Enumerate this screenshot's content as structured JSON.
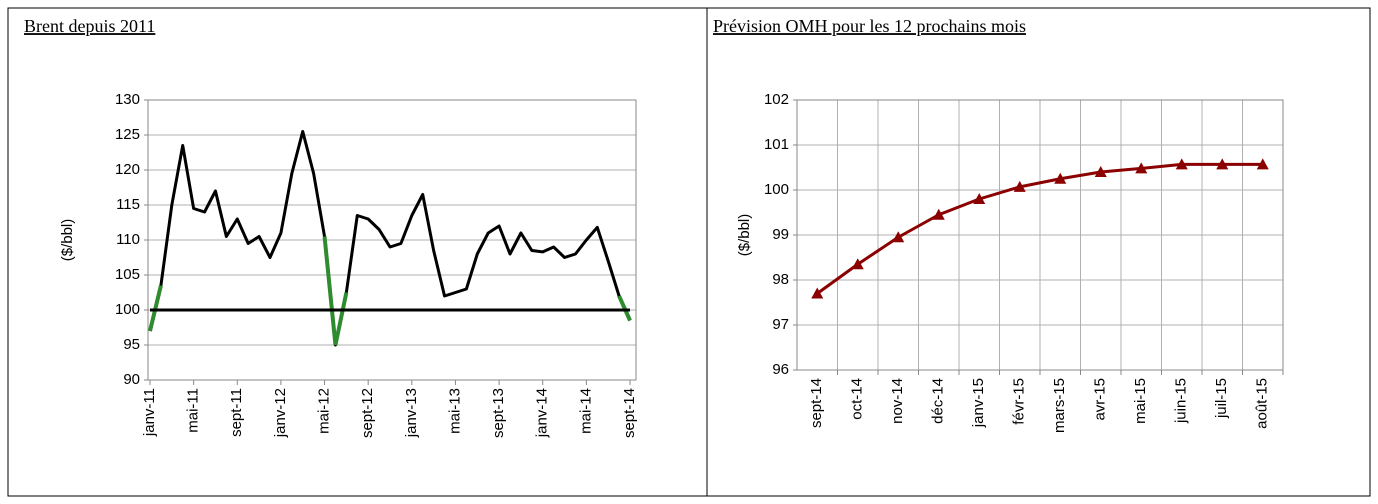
{
  "chart_data": [
    {
      "type": "line",
      "title": "Brent depuis 2011",
      "y_label": "($/bbl)",
      "categories": [
        "janv-11",
        null,
        null,
        null,
        "mai-11",
        null,
        null,
        null,
        "sept-11",
        null,
        null,
        null,
        "janv-12",
        null,
        null,
        null,
        "mai-12",
        null,
        null,
        null,
        "sept-12",
        null,
        null,
        null,
        "janv-13",
        null,
        null,
        null,
        "mai-13",
        null,
        null,
        null,
        "sept-13",
        null,
        null,
        null,
        "janv-14",
        null,
        null,
        null,
        "mai-14",
        null,
        null,
        null,
        "sept-14"
      ],
      "series": [
        {
          "color": "#000000",
          "below_color": "#2e8b2e",
          "values": [
            97,
            103.5,
            115,
            123.5,
            114.5,
            114,
            117,
            110.5,
            113,
            109.5,
            110.5,
            107.5,
            111,
            119.5,
            125.5,
            119.5,
            110.5,
            95,
            102.5,
            113.5,
            113,
            111.5,
            109,
            109.5,
            113.5,
            116.5,
            108.5,
            102,
            102.5,
            103,
            108,
            111,
            112,
            108,
            111,
            108.5,
            108.3,
            109,
            107.5,
            108,
            110,
            111.8,
            107,
            102,
            98.5
          ]
        },
        {
          "color": "#000000",
          "values": [
            100,
            100,
            100,
            100,
            100,
            100,
            100,
            100,
            100,
            100,
            100,
            100,
            100,
            100,
            100,
            100,
            100,
            100,
            100,
            100,
            100,
            100,
            100,
            100,
            100,
            100,
            100,
            100,
            100,
            100,
            100,
            100,
            100,
            100,
            100,
            100,
            100,
            100,
            100,
            100,
            100,
            100,
            100,
            100,
            100
          ]
        }
      ],
      "ylim": [
        90,
        130
      ],
      "yticks": [
        90,
        95,
        100,
        105,
        110,
        115,
        120,
        125,
        130
      ],
      "grid": "y"
    },
    {
      "type": "line",
      "title": "Prévision OMH pour les 12 prochains mois",
      "y_label": "($/bbl)",
      "categories": [
        "sept-14",
        "oct-14",
        "nov-14",
        "déc-14",
        "janv-15",
        "févr-15",
        "mars-15",
        "avr-15",
        "mai-15",
        "juin-15",
        "juil-15",
        "août-15"
      ],
      "series": [
        {
          "color": "#8b0000",
          "marker": "triangle",
          "values": [
            97.7,
            98.35,
            98.95,
            99.45,
            99.8,
            100.07,
            100.25,
            100.4,
            100.48,
            100.57,
            100.57,
            100.57
          ]
        }
      ],
      "ylim": [
        96,
        102
      ],
      "yticks": [
        96,
        97,
        98,
        99,
        100,
        101,
        102
      ],
      "grid": "xy"
    }
  ]
}
